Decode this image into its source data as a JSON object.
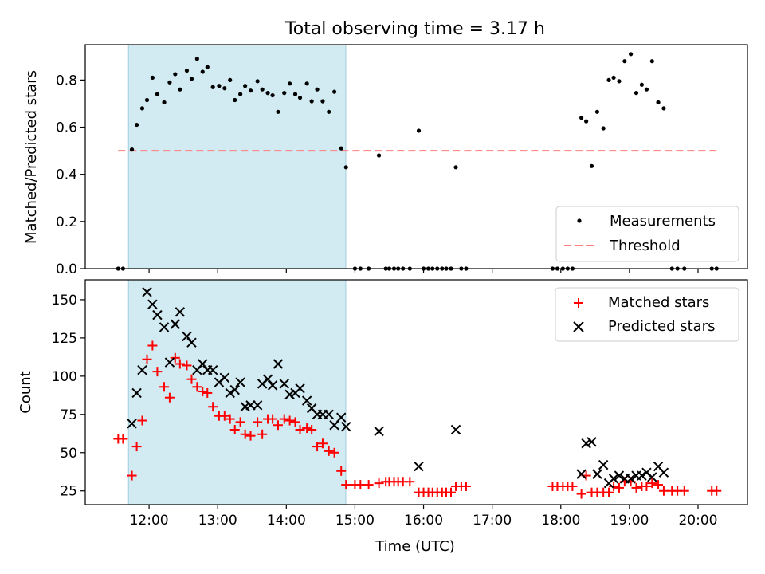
{
  "figure": {
    "title": "Total observing time = 3.17 h"
  },
  "chart_data": [
    {
      "type": "scatter",
      "title": "Total observing time = 3.17 h",
      "xlabel": "",
      "ylabel": "Matched/Predicted stars",
      "x_unit": "hours UTC",
      "xlim": [
        11.07,
        20.72
      ],
      "ylim": [
        0.0,
        0.95
      ],
      "yticks": [
        "0.0",
        "0.2",
        "0.4",
        "0.6",
        "0.8"
      ],
      "grid": false,
      "legend_position": "lower right",
      "highlight_span": {
        "from": "11:42",
        "to": "14:52",
        "color": "#add8e6"
      },
      "threshold": {
        "name": "Threshold",
        "y": 0.5,
        "x_from": 11.55,
        "x_to": 20.3,
        "color": "#ff7f7f"
      },
      "series": [
        {
          "name": "Measurements",
          "color": "#000000",
          "points": [
            [
              11.55,
              0.0
            ],
            [
              11.62,
              0.0
            ],
            [
              11.75,
              0.505
            ],
            [
              11.82,
              0.61
            ],
            [
              11.9,
              0.68
            ],
            [
              11.97,
              0.715
            ],
            [
              12.05,
              0.81
            ],
            [
              12.12,
              0.74
            ],
            [
              12.22,
              0.705
            ],
            [
              12.3,
              0.79
            ],
            [
              12.38,
              0.825
            ],
            [
              12.45,
              0.76
            ],
            [
              12.55,
              0.84
            ],
            [
              12.62,
              0.805
            ],
            [
              12.7,
              0.89
            ],
            [
              12.78,
              0.835
            ],
            [
              12.85,
              0.855
            ],
            [
              12.93,
              0.77
            ],
            [
              13.02,
              0.775
            ],
            [
              13.1,
              0.765
            ],
            [
              13.18,
              0.8
            ],
            [
              13.25,
              0.715
            ],
            [
              13.33,
              0.74
            ],
            [
              13.4,
              0.775
            ],
            [
              13.48,
              0.755
            ],
            [
              13.58,
              0.795
            ],
            [
              13.65,
              0.76
            ],
            [
              13.73,
              0.745
            ],
            [
              13.8,
              0.735
            ],
            [
              13.88,
              0.665
            ],
            [
              13.97,
              0.745
            ],
            [
              14.05,
              0.785
            ],
            [
              14.13,
              0.74
            ],
            [
              14.2,
              0.725
            ],
            [
              14.3,
              0.785
            ],
            [
              14.37,
              0.71
            ],
            [
              14.45,
              0.76
            ],
            [
              14.53,
              0.71
            ],
            [
              14.62,
              0.665
            ],
            [
              14.7,
              0.75
            ],
            [
              14.8,
              0.51
            ],
            [
              14.87,
              0.43
            ],
            [
              15.0,
              0.0
            ],
            [
              15.08,
              0.0
            ],
            [
              15.2,
              0.0
            ],
            [
              15.35,
              0.48
            ],
            [
              15.45,
              0.0
            ],
            [
              15.5,
              0.0
            ],
            [
              15.57,
              0.0
            ],
            [
              15.63,
              0.0
            ],
            [
              15.7,
              0.0
            ],
            [
              15.8,
              0.0
            ],
            [
              15.93,
              0.585
            ],
            [
              16.0,
              0.0
            ],
            [
              16.07,
              0.0
            ],
            [
              16.13,
              0.0
            ],
            [
              16.2,
              0.0
            ],
            [
              16.27,
              0.0
            ],
            [
              16.33,
              0.0
            ],
            [
              16.4,
              0.0
            ],
            [
              16.47,
              0.43
            ],
            [
              16.55,
              0.0
            ],
            [
              16.62,
              0.0
            ],
            [
              17.88,
              0.0
            ],
            [
              17.95,
              0.0
            ],
            [
              18.03,
              0.0
            ],
            [
              18.1,
              0.0
            ],
            [
              18.17,
              0.0
            ],
            [
              18.3,
              0.64
            ],
            [
              18.37,
              0.625
            ],
            [
              18.45,
              0.435
            ],
            [
              18.53,
              0.665
            ],
            [
              18.62,
              0.595
            ],
            [
              18.7,
              0.8
            ],
            [
              18.77,
              0.81
            ],
            [
              18.85,
              0.795
            ],
            [
              18.93,
              0.88
            ],
            [
              19.02,
              0.91
            ],
            [
              19.1,
              0.745
            ],
            [
              19.18,
              0.78
            ],
            [
              19.25,
              0.76
            ],
            [
              19.33,
              0.88
            ],
            [
              19.42,
              0.705
            ],
            [
              19.5,
              0.68
            ],
            [
              19.62,
              0.0
            ],
            [
              19.7,
              0.0
            ],
            [
              19.8,
              0.0
            ],
            [
              20.2,
              0.0
            ],
            [
              20.27,
              0.0
            ]
          ]
        }
      ]
    },
    {
      "type": "scatter",
      "title": "",
      "xlabel": "Time (UTC)",
      "ylabel": "Count",
      "x_unit": "hours UTC",
      "xlim": [
        11.07,
        20.72
      ],
      "ylim": [
        16,
        163
      ],
      "xticks": [
        "12:00",
        "13:00",
        "14:00",
        "15:00",
        "16:00",
        "17:00",
        "18:00",
        "19:00",
        "20:00"
      ],
      "yticks": [
        "25",
        "50",
        "75",
        "100",
        "125",
        "150"
      ],
      "grid": false,
      "legend_position": "upper right",
      "highlight_span": {
        "from": "11:42",
        "to": "14:52",
        "color": "#add8e6"
      },
      "series": [
        {
          "name": "Matched stars",
          "marker": "plus",
          "color": "#ff0000",
          "points": [
            [
              11.55,
              59
            ],
            [
              11.62,
              59
            ],
            [
              11.75,
              35
            ],
            [
              11.82,
              54
            ],
            [
              11.9,
              71
            ],
            [
              11.97,
              111
            ],
            [
              12.05,
              120
            ],
            [
              12.12,
              103
            ],
            [
              12.22,
              93
            ],
            [
              12.3,
              86
            ],
            [
              12.38,
              112
            ],
            [
              12.45,
              108
            ],
            [
              12.55,
              107
            ],
            [
              12.62,
              98
            ],
            [
              12.7,
              93
            ],
            [
              12.78,
              90
            ],
            [
              12.85,
              89
            ],
            [
              12.93,
              80
            ],
            [
              13.02,
              74
            ],
            [
              13.1,
              74
            ],
            [
              13.18,
              72
            ],
            [
              13.25,
              65
            ],
            [
              13.33,
              70
            ],
            [
              13.4,
              62
            ],
            [
              13.48,
              61
            ],
            [
              13.58,
              70
            ],
            [
              13.65,
              62
            ],
            [
              13.73,
              72
            ],
            [
              13.8,
              72
            ],
            [
              13.88,
              68
            ],
            [
              13.97,
              72
            ],
            [
              14.05,
              71
            ],
            [
              14.13,
              70
            ],
            [
              14.2,
              65
            ],
            [
              14.3,
              66
            ],
            [
              14.37,
              65
            ],
            [
              14.45,
              54
            ],
            [
              14.53,
              56
            ],
            [
              14.62,
              51
            ],
            [
              14.7,
              50
            ],
            [
              14.8,
              38
            ],
            [
              14.87,
              29
            ],
            [
              15.0,
              29
            ],
            [
              15.08,
              29
            ],
            [
              15.2,
              29
            ],
            [
              15.35,
              30
            ],
            [
              15.45,
              31
            ],
            [
              15.5,
              31
            ],
            [
              15.57,
              31
            ],
            [
              15.63,
              31
            ],
            [
              15.7,
              31
            ],
            [
              15.8,
              31
            ],
            [
              15.93,
              24
            ],
            [
              16.0,
              24
            ],
            [
              16.07,
              24
            ],
            [
              16.13,
              24
            ],
            [
              16.2,
              24
            ],
            [
              16.27,
              24
            ],
            [
              16.33,
              24
            ],
            [
              16.4,
              24
            ],
            [
              16.47,
              28
            ],
            [
              16.55,
              28
            ],
            [
              16.62,
              28
            ],
            [
              17.88,
              28
            ],
            [
              17.95,
              28
            ],
            [
              18.03,
              28
            ],
            [
              18.1,
              28
            ],
            [
              18.17,
              28
            ],
            [
              18.3,
              23
            ],
            [
              18.37,
              35
            ],
            [
              18.45,
              24
            ],
            [
              18.53,
              24
            ],
            [
              18.62,
              24
            ],
            [
              18.7,
              24
            ],
            [
              18.77,
              28
            ],
            [
              18.85,
              27
            ],
            [
              18.93,
              31
            ],
            [
              19.02,
              31
            ],
            [
              19.1,
              27
            ],
            [
              19.18,
              28
            ],
            [
              19.25,
              28
            ],
            [
              19.33,
              30
            ],
            [
              19.42,
              29
            ],
            [
              19.5,
              25
            ],
            [
              19.62,
              25
            ],
            [
              19.7,
              25
            ],
            [
              19.8,
              25
            ],
            [
              20.2,
              25
            ],
            [
              20.27,
              25
            ]
          ]
        },
        {
          "name": "Predicted stars",
          "marker": "x",
          "color": "#000000",
          "points": [
            [
              11.75,
              69
            ],
            [
              11.82,
              89
            ],
            [
              11.9,
              104
            ],
            [
              11.97,
              155
            ],
            [
              12.05,
              147
            ],
            [
              12.12,
              140
            ],
            [
              12.22,
              132
            ],
            [
              12.3,
              109
            ],
            [
              12.38,
              134
            ],
            [
              12.45,
              142
            ],
            [
              12.55,
              126
            ],
            [
              12.62,
              122
            ],
            [
              12.7,
              104
            ],
            [
              12.78,
              108
            ],
            [
              12.85,
              104
            ],
            [
              12.93,
              104
            ],
            [
              13.02,
              96
            ],
            [
              13.1,
              99
            ],
            [
              13.18,
              89
            ],
            [
              13.25,
              91
            ],
            [
              13.33,
              96
            ],
            [
              13.4,
              80
            ],
            [
              13.48,
              81
            ],
            [
              13.58,
              81
            ],
            [
              13.65,
              95
            ],
            [
              13.73,
              98
            ],
            [
              13.8,
              94
            ],
            [
              13.88,
              108
            ],
            [
              13.97,
              95
            ],
            [
              14.05,
              88
            ],
            [
              14.13,
              89
            ],
            [
              14.2,
              92
            ],
            [
              14.3,
              84
            ],
            [
              14.37,
              79
            ],
            [
              14.45,
              75
            ],
            [
              14.53,
              75
            ],
            [
              14.62,
              75
            ],
            [
              14.7,
              68
            ],
            [
              14.8,
              73
            ],
            [
              14.87,
              67
            ],
            [
              15.35,
              64
            ],
            [
              15.93,
              41
            ],
            [
              16.47,
              65
            ],
            [
              18.3,
              36
            ],
            [
              18.37,
              56
            ],
            [
              18.45,
              57
            ],
            [
              18.53,
              36
            ],
            [
              18.62,
              42
            ],
            [
              18.7,
              30
            ],
            [
              18.77,
              33
            ],
            [
              18.85,
              35
            ],
            [
              18.93,
              33
            ],
            [
              19.02,
              33
            ],
            [
              19.1,
              35
            ],
            [
              19.18,
              35
            ],
            [
              19.25,
              37
            ],
            [
              19.33,
              34
            ],
            [
              19.42,
              41
            ],
            [
              19.5,
              37
            ]
          ]
        }
      ]
    }
  ]
}
